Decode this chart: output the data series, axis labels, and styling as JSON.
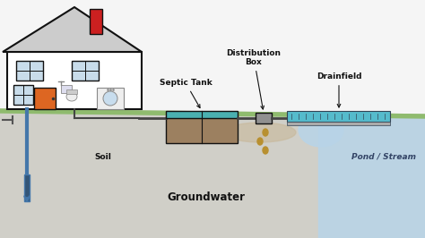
{
  "fig_width": 4.74,
  "fig_height": 2.66,
  "dpi": 100,
  "sky_color": "#f5f5f5",
  "ground_color": "#d0cfc8",
  "ground_top_color": "#8fbb6e",
  "pond_color": "#b8d4e8",
  "septic_tank_brown": "#9c8060",
  "septic_tank_top": "#4ab0b0",
  "dist_box_color": "#909090",
  "drainfield_color": "#55bbcc",
  "drainfield_border": "#334455",
  "pipe_color": "#444444",
  "house_wall": "#ffffff",
  "house_outline": "#111111",
  "roof_color": "#cccccc",
  "chimney_color": "#cc2020",
  "door_color": "#dd6622",
  "window_color": "#c8dcea",
  "leach_color": "#c8b89a",
  "drop_color": "#b89030",
  "well_pipe_color": "#4477aa",
  "label_color": "#111111",
  "label_fs": 6.5,
  "gw_fs": 8.5,
  "pond_fs": 6.5,
  "soil_fs": 6.5,
  "labels": {
    "septic_tank": "Septic Tank",
    "dist_box": "Distribution\nBox",
    "drainfield": "Drainfield",
    "soil": "Soil",
    "groundwater": "Groundwater",
    "pond": "Pond / Stream"
  }
}
